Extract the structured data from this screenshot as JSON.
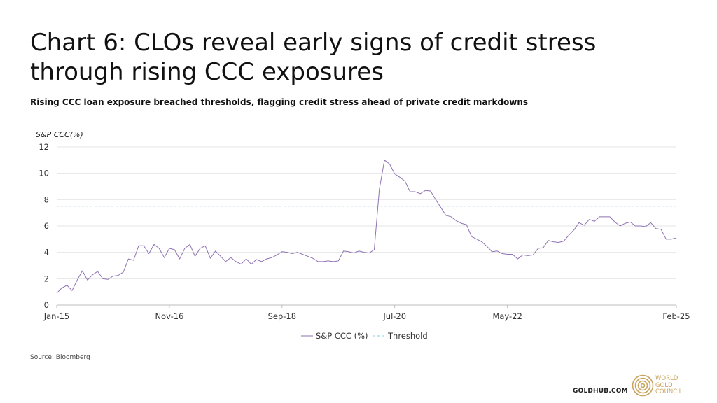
{
  "header": {
    "title": "Chart 6: CLOs reveal early signs of credit stress through rising CCC exposures",
    "subtitle": "Rising CCC loan exposure breached thresholds, flagging credit stress ahead of private credit markdowns"
  },
  "footer": {
    "source": "Source: Bloomberg",
    "site": "GOLDHUB.COM",
    "logo_lines": [
      "WORLD",
      "GOLD",
      "COUNCIL"
    ],
    "logo_icon": "concentric-circles-icon"
  },
  "colors": {
    "series": "#8e72b3",
    "threshold": "#8fcde0",
    "grid": "#e6e6e6",
    "axis": "#bdbdbd",
    "logo": "#c9a45c"
  },
  "chart_data": {
    "type": "line",
    "ylabel": "S&P CCC(%)",
    "ylim": [
      0,
      12
    ],
    "yticks": [
      0,
      2,
      4,
      6,
      8,
      10,
      12
    ],
    "x_tick_labels": [
      "Jan-15",
      "Nov-16",
      "Sep-18",
      "Jul-20",
      "May-22",
      "Feb-25"
    ],
    "x_tick_months": [
      0,
      22,
      44,
      66,
      88,
      121
    ],
    "x_months_total": 121,
    "grid": "horizontal",
    "legend": "bottom-center",
    "legend_entries": [
      "S&P CCC (%)",
      "Threshold"
    ],
    "threshold": {
      "name": "Threshold",
      "value": 7.5
    },
    "series": [
      {
        "name": "S&P CCC (%)",
        "points": [
          [
            0,
            0.9
          ],
          [
            1,
            1.3
          ],
          [
            2,
            1.5
          ],
          [
            3,
            1.1
          ],
          [
            4,
            1.9
          ],
          [
            5,
            2.6
          ],
          [
            6,
            1.9
          ],
          [
            7,
            2.3
          ],
          [
            8,
            2.55
          ],
          [
            9,
            2.0
          ],
          [
            10,
            1.95
          ],
          [
            11,
            2.2
          ],
          [
            12,
            2.25
          ],
          [
            13,
            2.5
          ],
          [
            14,
            3.5
          ],
          [
            15,
            3.4
          ],
          [
            16,
            4.5
          ],
          [
            17,
            4.5
          ],
          [
            18,
            3.9
          ],
          [
            19,
            4.6
          ],
          [
            20,
            4.3
          ],
          [
            21,
            3.6
          ],
          [
            22,
            4.3
          ],
          [
            23,
            4.2
          ],
          [
            24,
            3.5
          ],
          [
            25,
            4.3
          ],
          [
            26,
            4.6
          ],
          [
            27,
            3.7
          ],
          [
            28,
            4.3
          ],
          [
            29,
            4.5
          ],
          [
            30,
            3.55
          ],
          [
            31,
            4.1
          ],
          [
            32,
            3.7
          ],
          [
            33,
            3.3
          ],
          [
            34,
            3.6
          ],
          [
            35,
            3.3
          ],
          [
            36,
            3.1
          ],
          [
            37,
            3.5
          ],
          [
            38,
            3.1
          ],
          [
            39,
            3.45
          ],
          [
            40,
            3.3
          ],
          [
            41,
            3.5
          ],
          [
            42,
            3.6
          ],
          [
            43,
            3.8
          ],
          [
            44,
            4.05
          ],
          [
            45,
            4.0
          ],
          [
            46,
            3.9
          ],
          [
            47,
            4.0
          ],
          [
            48,
            3.85
          ],
          [
            49,
            3.7
          ],
          [
            50,
            3.55
          ],
          [
            51,
            3.3
          ],
          [
            52,
            3.3
          ],
          [
            53,
            3.35
          ],
          [
            54,
            3.3
          ],
          [
            55,
            3.35
          ],
          [
            56,
            4.1
          ],
          [
            57,
            4.05
          ],
          [
            58,
            3.95
          ],
          [
            59,
            4.1
          ],
          [
            60,
            4.0
          ],
          [
            61,
            3.95
          ],
          [
            62,
            4.2
          ],
          [
            63,
            8.8
          ],
          [
            64,
            11.0
          ],
          [
            65,
            10.7
          ],
          [
            66,
            9.95
          ],
          [
            67,
            9.7
          ],
          [
            68,
            9.4
          ],
          [
            69,
            8.6
          ],
          [
            70,
            8.6
          ],
          [
            71,
            8.45
          ],
          [
            72,
            8.7
          ],
          [
            73,
            8.65
          ],
          [
            74,
            8.0
          ],
          [
            75,
            7.4
          ],
          [
            76,
            6.8
          ],
          [
            77,
            6.7
          ],
          [
            78,
            6.4
          ],
          [
            79,
            6.2
          ],
          [
            80,
            6.1
          ],
          [
            81,
            5.2
          ],
          [
            82,
            5.0
          ],
          [
            83,
            4.8
          ],
          [
            84,
            4.45
          ],
          [
            85,
            4.05
          ],
          [
            86,
            4.1
          ],
          [
            87,
            3.9
          ],
          [
            88,
            3.85
          ],
          [
            89,
            3.85
          ],
          [
            90,
            3.5
          ],
          [
            91,
            3.8
          ],
          [
            92,
            3.75
          ],
          [
            93,
            3.8
          ],
          [
            94,
            4.3
          ],
          [
            95,
            4.35
          ],
          [
            96,
            4.9
          ],
          [
            97,
            4.8
          ],
          [
            98,
            4.75
          ],
          [
            99,
            4.85
          ],
          [
            100,
            5.3
          ],
          [
            101,
            5.7
          ],
          [
            102,
            6.25
          ],
          [
            103,
            6.05
          ],
          [
            104,
            6.5
          ],
          [
            105,
            6.35
          ],
          [
            106,
            6.7
          ],
          [
            107,
            6.7
          ],
          [
            108,
            6.7
          ],
          [
            109,
            6.3
          ],
          [
            110,
            6.0
          ],
          [
            111,
            6.2
          ],
          [
            112,
            6.3
          ],
          [
            113,
            6.0
          ],
          [
            114,
            6.0
          ],
          [
            115,
            5.95
          ],
          [
            116,
            6.25
          ],
          [
            117,
            5.8
          ],
          [
            118,
            5.75
          ],
          [
            119,
            5.0
          ],
          [
            120,
            5.0
          ],
          [
            121,
            5.1
          ]
        ]
      }
    ]
  }
}
